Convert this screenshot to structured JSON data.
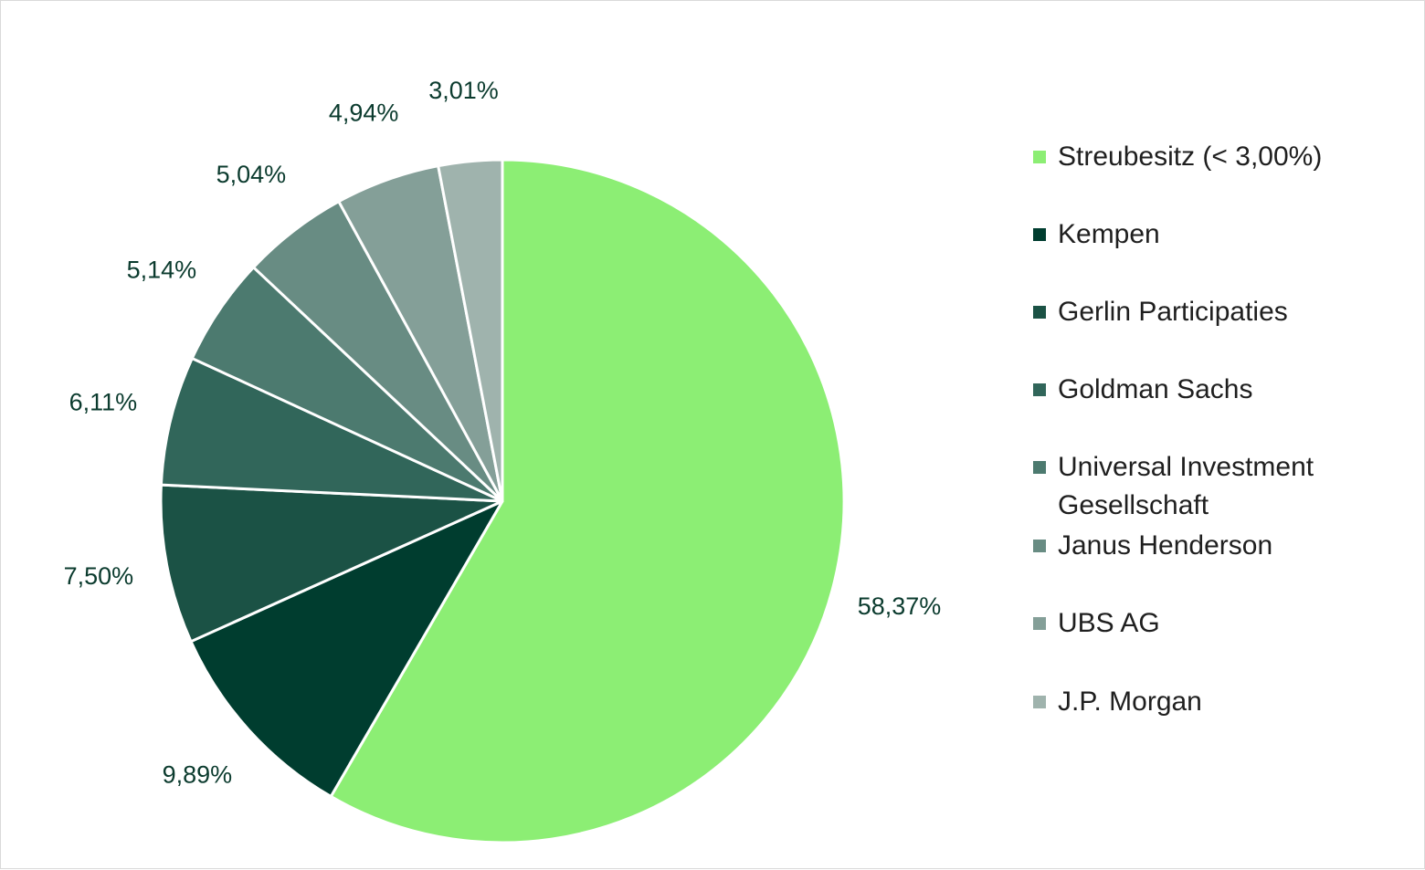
{
  "chart_data": {
    "type": "pie",
    "start": "top, clockwise",
    "slices": [
      {
        "label": "Streubesitz (< 3,00%)",
        "value": 58.37,
        "display": "58,37%",
        "color": "#8CEE74"
      },
      {
        "label": "Kempen",
        "value": 9.89,
        "display": "9,89%",
        "color": "#003D2F"
      },
      {
        "label": "Gerlin Participaties",
        "value": 7.5,
        "display": "7,50%",
        "color": "#1B5245"
      },
      {
        "label": "Goldman Sachs",
        "value": 6.11,
        "display": "6,11%",
        "color": "#31665A"
      },
      {
        "label": "Universal Investment Gesellschaft",
        "value": 5.14,
        "display": "5,14%",
        "color": "#4C7A6F"
      },
      {
        "label": "Janus Henderson",
        "value": 5.04,
        "display": "5,04%",
        "color": "#688C83"
      },
      {
        "label": "UBS AG",
        "value": 4.94,
        "display": "4,94%",
        "color": "#849F98"
      },
      {
        "label": "J.P. Morgan",
        "value": 3.01,
        "display": "3,01%",
        "color": "#9FB3AD"
      }
    ],
    "legend_position": "right",
    "label_color": "#0B3B2E"
  },
  "legend": {
    "items": [
      "Streubesitz (< 3,00%)",
      "Kempen",
      "Gerlin Participaties",
      "Goldman Sachs",
      "Universal Investment Gesellschaft",
      "Janus Henderson",
      "UBS AG",
      "J.P. Morgan"
    ]
  }
}
